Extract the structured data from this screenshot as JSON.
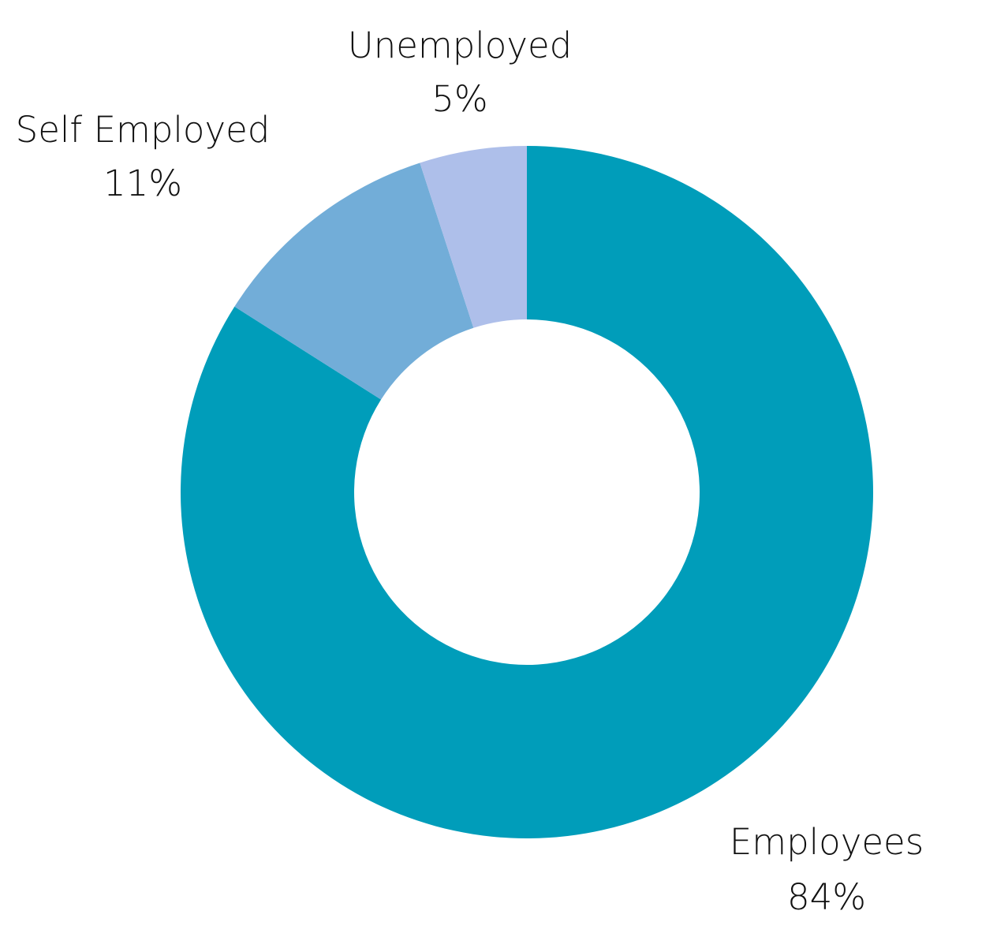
{
  "chart_data": {
    "type": "pie",
    "variant": "donut",
    "slices": [
      {
        "label": "Employees",
        "value": 84,
        "value_label": "84%",
        "color": "#009DBA"
      },
      {
        "label": "Self Employed",
        "value": 11,
        "value_label": "11%",
        "color": "#72ADD8"
      },
      {
        "label": "Unemployed",
        "value": 5,
        "value_label": "5%",
        "color": "#AEBFEA"
      }
    ],
    "start_angle": "top, clockwise",
    "legend": "none, labels placed outside slices"
  }
}
